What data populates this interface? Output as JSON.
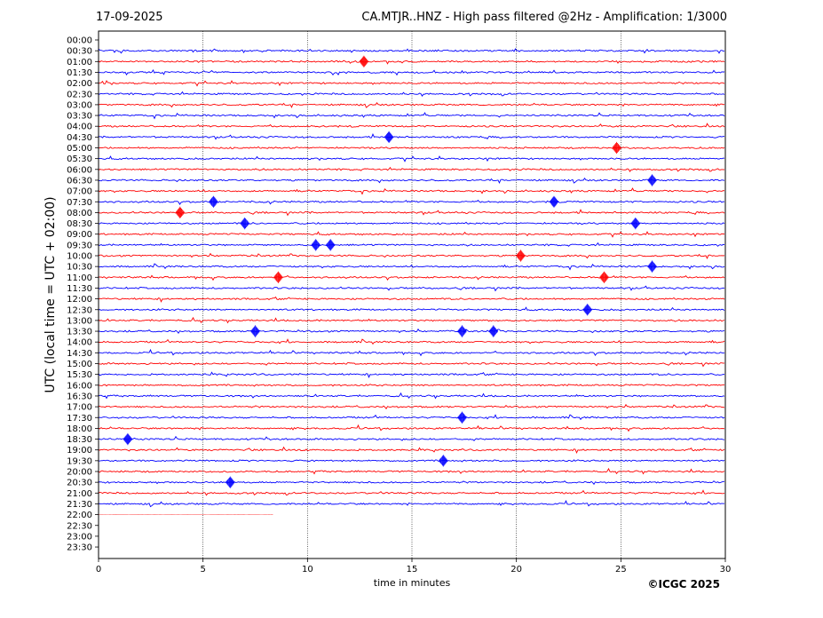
{
  "header": {
    "date": "17-09-2025",
    "title": "CA.MTJR..HNZ - High pass filtered @2Hz - Amplification: 1/3000"
  },
  "credit": "©ICGC 2025",
  "colors": {
    "even_trace": "#ff0000",
    "odd_trace": "#0000ff",
    "grid": "#000000"
  },
  "chart_data": {
    "type": "line",
    "xlabel": "time in minutes",
    "ylabel": "UTC (local time = UTC + 02:00)",
    "xlim": [
      0,
      30
    ],
    "xticks": [
      0,
      5,
      10,
      15,
      20,
      25,
      30
    ],
    "grid_x": true,
    "rows": [
      "00:00",
      "00:30",
      "01:00",
      "01:30",
      "02:00",
      "02:30",
      "03:00",
      "03:30",
      "04:00",
      "04:30",
      "05:00",
      "05:30",
      "06:00",
      "06:30",
      "07:00",
      "07:30",
      "08:00",
      "08:30",
      "09:00",
      "09:30",
      "10:00",
      "10:30",
      "11:00",
      "11:30",
      "12:00",
      "12:30",
      "13:00",
      "13:30",
      "14:00",
      "14:30",
      "15:00",
      "15:30",
      "16:00",
      "16:30",
      "17:00",
      "17:30",
      "18:00",
      "18:30",
      "19:00",
      "19:30",
      "20:00",
      "20:30",
      "21:00",
      "21:30",
      "22:00",
      "22:30",
      "23:00",
      "23:30"
    ],
    "trace_end_minutes": [
      0,
      30,
      30,
      30,
      30,
      30,
      30,
      30,
      30,
      30,
      30,
      30,
      30,
      30,
      30,
      30,
      30,
      30,
      30,
      30,
      30,
      30,
      30,
      30,
      30,
      30,
      30,
      30,
      30,
      30,
      30,
      30,
      30,
      30,
      30,
      30,
      30,
      30,
      30,
      30,
      30,
      30,
      30,
      30,
      8.4,
      0,
      0,
      0
    ],
    "events": [
      {
        "row": "01:00",
        "minute": 12.7
      },
      {
        "row": "04:30",
        "minute": 13.9
      },
      {
        "row": "05:00",
        "minute": 24.8
      },
      {
        "row": "06:30",
        "minute": 26.5
      },
      {
        "row": "07:30",
        "minute": 5.5
      },
      {
        "row": "07:30",
        "minute": 21.8
      },
      {
        "row": "08:00",
        "minute": 3.9
      },
      {
        "row": "08:30",
        "minute": 7.0
      },
      {
        "row": "08:30",
        "minute": 25.7
      },
      {
        "row": "09:30",
        "minute": 10.4
      },
      {
        "row": "09:30",
        "minute": 11.1
      },
      {
        "row": "10:00",
        "minute": 20.2
      },
      {
        "row": "10:30",
        "minute": 26.5
      },
      {
        "row": "11:00",
        "minute": 8.6
      },
      {
        "row": "11:00",
        "minute": 24.2
      },
      {
        "row": "12:30",
        "minute": 23.4
      },
      {
        "row": "13:30",
        "minute": 7.5
      },
      {
        "row": "13:30",
        "minute": 17.4
      },
      {
        "row": "13:30",
        "minute": 18.9
      },
      {
        "row": "17:30",
        "minute": 17.4
      },
      {
        "row": "18:30",
        "minute": 1.4
      },
      {
        "row": "19:30",
        "minute": 16.5
      },
      {
        "row": "20:30",
        "minute": 6.3
      }
    ]
  }
}
